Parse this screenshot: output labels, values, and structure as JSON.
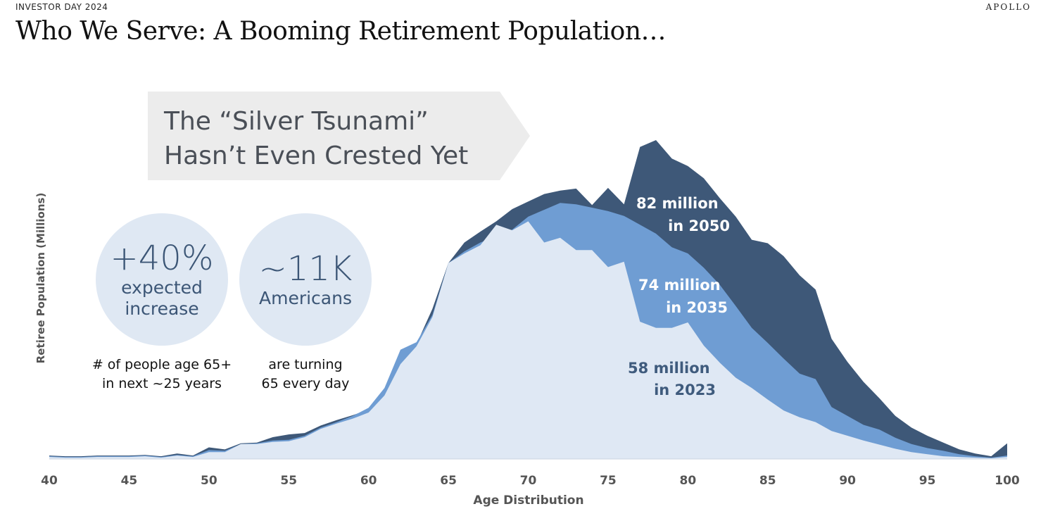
{
  "header": {
    "event_label": "INVESTOR DAY 2024",
    "brand": "APOLLO",
    "title": "Who We Serve: A Booming Retirement Population…"
  },
  "banner": {
    "line1": "The “Silver Tsunami”",
    "line2": "Hasn’t Even Crested Yet"
  },
  "stats": [
    {
      "value": "+40%",
      "label_line1": "expected",
      "label_line2": "increase",
      "caption_line1": "# of people age 65+",
      "caption_line2": "in next ~25 years"
    },
    {
      "value": "~11K",
      "label_line1": "Americans",
      "label_line2": "",
      "caption_line1": "are turning",
      "caption_line2": "65 every day"
    }
  ],
  "colors": {
    "series_2050": "#3e5878",
    "series_2035": "#6f9dd3",
    "series_2023": "#dfe8f4",
    "banner_bg": "#ececec",
    "circle_bg": "#dfe8f3",
    "axis_text": "#555555"
  },
  "chart_data": {
    "type": "area",
    "title": "",
    "xlabel": "Age Distribution",
    "ylabel": "Retiree Population (Millions)",
    "xlim": [
      40,
      100
    ],
    "x_ticks": [
      40,
      45,
      50,
      55,
      60,
      65,
      70,
      75,
      80,
      85,
      90,
      95,
      100
    ],
    "grid": false,
    "legend": "none",
    "x": [
      40,
      41,
      42,
      43,
      44,
      45,
      46,
      47,
      48,
      49,
      50,
      51,
      52,
      53,
      54,
      55,
      56,
      57,
      58,
      59,
      60,
      61,
      62,
      63,
      64,
      65,
      66,
      67,
      68,
      69,
      70,
      71,
      72,
      73,
      74,
      75,
      76,
      77,
      78,
      79,
      80,
      81,
      82,
      83,
      84,
      85,
      86,
      87,
      88,
      89,
      90,
      91,
      92,
      93,
      94,
      95,
      96,
      97,
      98,
      99,
      100
    ],
    "series": [
      {
        "name": "82 million in 2050",
        "label_line1": "82 million",
        "label_line2": "in 2050",
        "label_position": "upper",
        "color_key": "series_2050",
        "values": [
          0.5,
          0.4,
          0.4,
          0.5,
          0.5,
          0.5,
          0.6,
          0.4,
          0.8,
          0.5,
          1.7,
          1.4,
          2.3,
          2.4,
          3.2,
          3.6,
          3.8,
          4.9,
          5.7,
          6.4,
          7.2,
          9.9,
          14.5,
          16.8,
          22.0,
          28.7,
          31.7,
          33.3,
          34.8,
          36.6,
          37.7,
          38.8,
          39.3,
          39.6,
          37.2,
          39.7,
          37.3,
          45.7,
          46.7,
          44.0,
          42.9,
          41.1,
          38.2,
          35.5,
          32.1,
          31.6,
          29.7,
          26.9,
          24.8,
          17.6,
          14.2,
          11.3,
          8.9,
          6.3,
          4.6,
          3.4,
          2.4,
          1.4,
          0.8,
          0.4,
          2.3
        ]
      },
      {
        "name": "74 million in 2035",
        "label_line1": "74 million",
        "label_line2": "in 2035",
        "label_position": "middle",
        "color_key": "series_2035",
        "values": [
          0.4,
          0.3,
          0.3,
          0.4,
          0.4,
          0.4,
          0.5,
          0.3,
          0.6,
          0.4,
          1.3,
          1.2,
          2.2,
          2.3,
          2.7,
          2.8,
          3.4,
          4.6,
          5.4,
          6.3,
          7.5,
          10.4,
          16.0,
          17.1,
          21.1,
          28.7,
          30.4,
          31.7,
          32.6,
          33.6,
          35.5,
          36.5,
          37.5,
          37.3,
          36.8,
          36.3,
          35.6,
          34.3,
          33.0,
          31.0,
          30.1,
          28.0,
          25.5,
          22.4,
          19.2,
          17.0,
          14.7,
          12.5,
          11.7,
          7.6,
          6.3,
          5.0,
          4.3,
          3.1,
          2.2,
          1.6,
          1.2,
          0.7,
          0.4,
          0.2,
          0.5
        ]
      },
      {
        "name": "58 million in 2023",
        "label_line1": "58 million",
        "label_line2": "in 2023",
        "label_position": "lower",
        "color_key": "series_2023",
        "values": [
          0.3,
          0.2,
          0.2,
          0.3,
          0.3,
          0.3,
          0.4,
          0.2,
          0.5,
          0.3,
          1.0,
          1.0,
          2.2,
          2.2,
          2.5,
          2.6,
          3.2,
          4.4,
          5.2,
          5.9,
          6.8,
          9.3,
          13.9,
          16.5,
          20.8,
          28.7,
          30.1,
          31.3,
          34.3,
          33.5,
          34.8,
          31.7,
          32.4,
          30.6,
          30.6,
          28.1,
          28.9,
          20.1,
          19.2,
          19.2,
          20.0,
          16.6,
          14.1,
          11.9,
          10.4,
          8.7,
          7.1,
          6.1,
          5.4,
          4.1,
          3.4,
          2.7,
          2.1,
          1.5,
          1.0,
          0.7,
          0.4,
          0.3,
          0.2,
          0.1,
          0.3
        ]
      }
    ]
  }
}
